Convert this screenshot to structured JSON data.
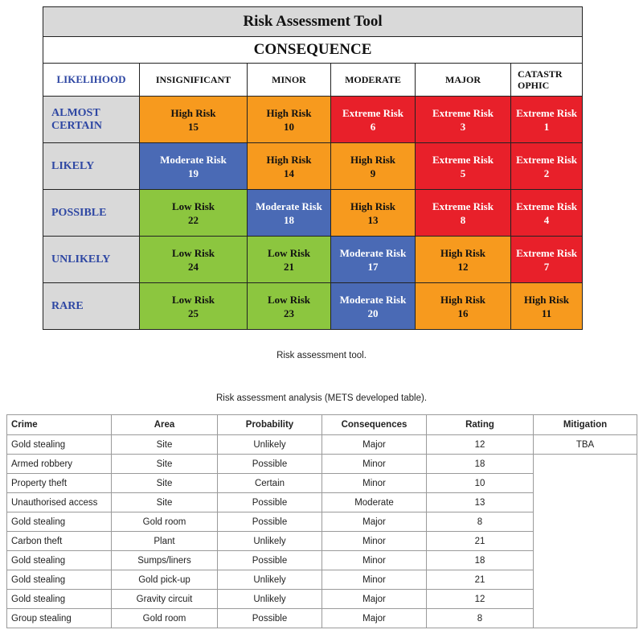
{
  "matrix": {
    "title": "Risk Assessment Tool",
    "consequence_label": "CONSEQUENCE",
    "likelihood_label": "LIKELIHOOD",
    "columns": [
      "INSIGNIFICANT",
      "MINOR",
      "MODERATE",
      "MAJOR",
      "CATASTR OPHIC"
    ],
    "rows": [
      {
        "likelihood": "ALMOST CERTAIN",
        "cells": [
          {
            "label": "High Risk",
            "num": "15",
            "level": "high"
          },
          {
            "label": "High Risk",
            "num": "10",
            "level": "high"
          },
          {
            "label": "Extreme Risk",
            "num": "6",
            "level": "extreme"
          },
          {
            "label": "Extreme Risk",
            "num": "3",
            "level": "extreme"
          },
          {
            "label": "Extreme Risk",
            "num": "1",
            "level": "extreme"
          }
        ]
      },
      {
        "likelihood": "LIKELY",
        "cells": [
          {
            "label": "Moderate Risk",
            "num": "19",
            "level": "moderate"
          },
          {
            "label": "High Risk",
            "num": "14",
            "level": "high"
          },
          {
            "label": "High Risk",
            "num": "9",
            "level": "high"
          },
          {
            "label": "Extreme Risk",
            "num": "5",
            "level": "extreme"
          },
          {
            "label": "Extreme Risk",
            "num": "2",
            "level": "extreme"
          }
        ]
      },
      {
        "likelihood": "POSSIBLE",
        "cells": [
          {
            "label": "Low Risk",
            "num": "22",
            "level": "low"
          },
          {
            "label": "Moderate Risk",
            "num": "18",
            "level": "moderate"
          },
          {
            "label": "High Risk",
            "num": "13",
            "level": "high"
          },
          {
            "label": "Extreme Risk",
            "num": "8",
            "level": "extreme"
          },
          {
            "label": "Extreme Risk",
            "num": "4",
            "level": "extreme"
          }
        ]
      },
      {
        "likelihood": "UNLIKELY",
        "cells": [
          {
            "label": "Low Risk",
            "num": "24",
            "level": "low"
          },
          {
            "label": "Low Risk",
            "num": "21",
            "level": "low"
          },
          {
            "label": "Moderate Risk",
            "num": "17",
            "level": "moderate"
          },
          {
            "label": "High Risk",
            "num": "12",
            "level": "high"
          },
          {
            "label": "Extreme Risk",
            "num": "7",
            "level": "extreme"
          }
        ]
      },
      {
        "likelihood": "RARE",
        "cells": [
          {
            "label": "Low Risk",
            "num": "25",
            "level": "low"
          },
          {
            "label": "Low Risk",
            "num": "23",
            "level": "low"
          },
          {
            "label": "Moderate Risk",
            "num": "20",
            "level": "moderate"
          },
          {
            "label": "High Risk",
            "num": "16",
            "level": "high"
          },
          {
            "label": "High Risk",
            "num": "11",
            "level": "high"
          }
        ]
      }
    ],
    "colors": {
      "high": "#f79a1e",
      "extreme": "#e8202a",
      "moderate": "#4a6ab5",
      "low": "#8cc63f",
      "likelihood_text": "#2e47a3"
    }
  },
  "caption_tool": "Risk assessment tool.",
  "caption_analysis": "Risk assessment analysis (METS developed table).",
  "analysis": {
    "headers": [
      "Crime",
      "Area",
      "Probability",
      "Consequences",
      "Rating",
      "Mitigation"
    ],
    "mitigation": "TBA",
    "rows": [
      [
        "Gold stealing",
        "Site",
        "Unlikely",
        "Major",
        "12"
      ],
      [
        "Armed robbery",
        "Site",
        "Possible",
        "Minor",
        "18"
      ],
      [
        "Property theft",
        "Site",
        "Certain",
        "Minor",
        "10"
      ],
      [
        "Unauthorised access",
        "Site",
        "Possible",
        "Moderate",
        "13"
      ],
      [
        "Gold stealing",
        "Gold room",
        "Possible",
        "Major",
        "8"
      ],
      [
        "Carbon theft",
        "Plant",
        "Unlikely",
        "Minor",
        "21"
      ],
      [
        "Gold stealing",
        "Sumps/liners",
        "Possible",
        "Minor",
        "18"
      ],
      [
        "Gold stealing",
        "Gold pick-up",
        "Unlikely",
        "Minor",
        "21"
      ],
      [
        "Gold stealing",
        "Gravity circuit",
        "Unlikely",
        "Major",
        "12"
      ],
      [
        "Group stealing",
        "Gold room",
        "Possible",
        "Major",
        "8"
      ]
    ]
  }
}
